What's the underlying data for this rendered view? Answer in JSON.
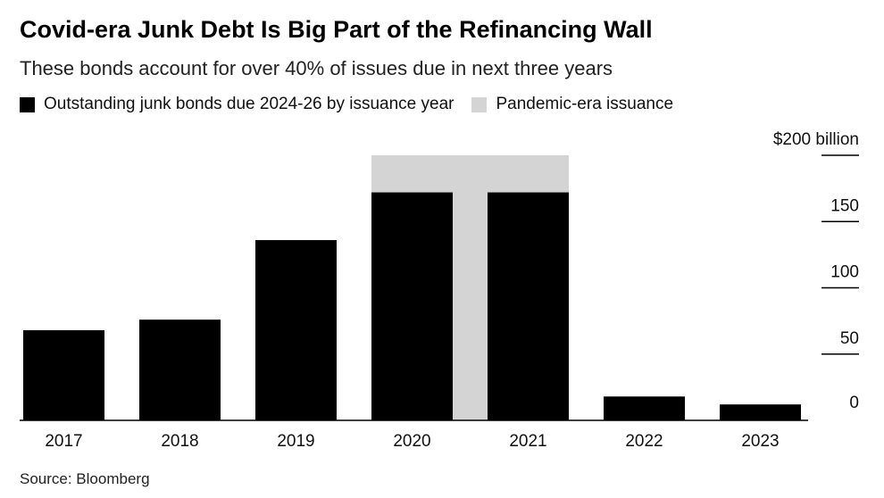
{
  "title": "Covid-era Junk Debt Is Big Part of the Refinancing Wall",
  "subtitle": "These bonds account for over 40% of issues due in next three years",
  "legend": [
    {
      "label": "Outstanding junk bonds due 2024-26 by issuance year",
      "color": "#000000"
    },
    {
      "label": "Pandemic-era issuance",
      "color": "#d4d4d4"
    }
  ],
  "source": "Source: Bloomberg",
  "chart_data": {
    "type": "bar",
    "categories": [
      "2017",
      "2018",
      "2019",
      "2020",
      "2021",
      "2022",
      "2023"
    ],
    "series": [
      {
        "name": "Outstanding junk bonds due 2024-26 by issuance year",
        "values": [
          68,
          76,
          136,
          172,
          172,
          18,
          12
        ],
        "color": "#000000"
      }
    ],
    "highlight": {
      "name": "Pandemic-era issuance",
      "categories": [
        "2020",
        "2021"
      ],
      "color": "#d4d4d4",
      "top": 200
    },
    "ylim": [
      0,
      200
    ],
    "yticks": [
      0,
      50,
      100,
      150,
      200
    ],
    "ytick_labels": [
      "0",
      "50",
      "100",
      "150",
      "$200 billion"
    ],
    "y_axis_side": "right",
    "legend_position": "top-left",
    "grid": false
  }
}
